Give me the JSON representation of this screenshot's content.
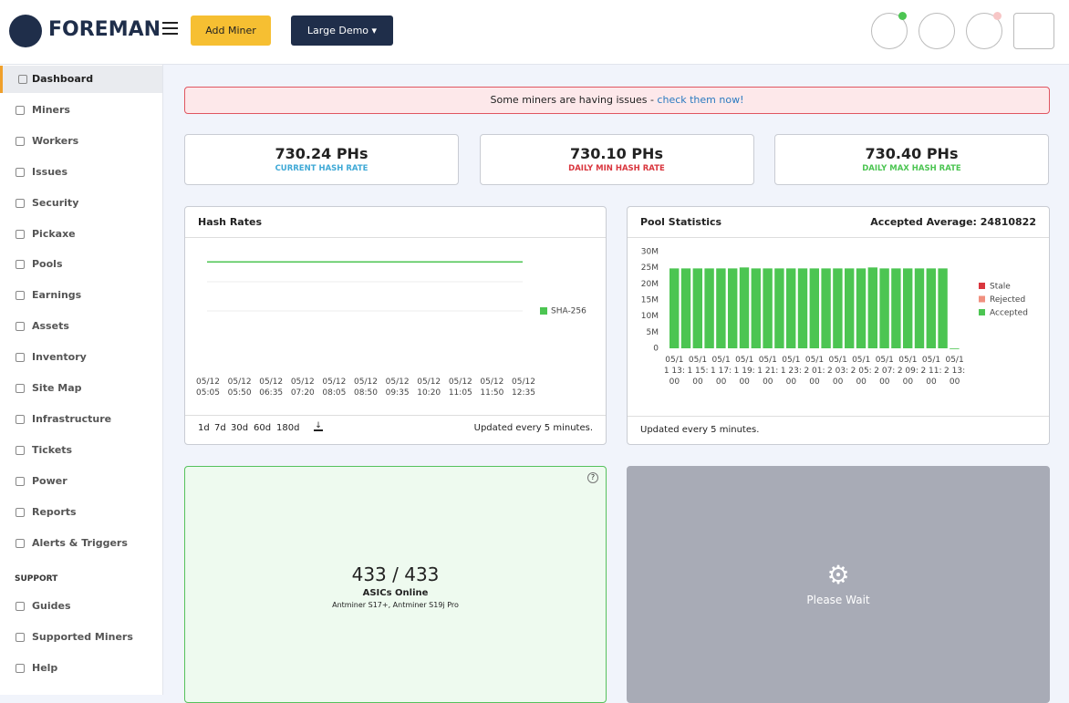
{
  "header": {
    "brand": "FOREMAN",
    "add_button": "Add Miner",
    "site_selector": "Large Demo"
  },
  "sidebar": {
    "items": [
      "Dashboard",
      "Miners",
      "Workers",
      "Issues",
      "Security",
      "Pickaxe",
      "Pools",
      "Earnings",
      "Assets",
      "Inventory",
      "Site Map",
      "Infrastructure",
      "Tickets",
      "Power",
      "Reports",
      "Alerts & Triggers"
    ],
    "section": "SUPPORT",
    "support_items": [
      "Guides",
      "Supported Miners",
      "Help"
    ]
  },
  "alert": {
    "text": "Some miners are having issues - ",
    "link": "check them now!"
  },
  "stats": [
    {
      "value": "730.24 PHs",
      "label": "CURRENT HASH RATE",
      "color": "#3fa9d6"
    },
    {
      "value": "730.10 PHs",
      "label": "DAILY MIN HASH RATE",
      "color": "#d9363e"
    },
    {
      "value": "730.40 PHs",
      "label": "DAILY MAX HASH RATE",
      "color": "#4cc552"
    }
  ],
  "hash_chart": {
    "chart_data": {
      "type": "line",
      "title": "Hash Rates",
      "x": [
        "05/12 05:05",
        "05/12 05:50",
        "05/12 06:35",
        "05/12 07:20",
        "05/12 08:05",
        "05/12 08:50",
        "05/12 09:35",
        "05/12 10:20",
        "05/12 11:05",
        "05/12 11:50",
        "05/12 12:35"
      ],
      "series": [
        {
          "name": "SHA-256",
          "color": "#4cc552",
          "values": [
            730.2,
            730.2,
            730.2,
            730.2,
            730.2,
            730.2,
            730.2,
            730.2,
            730.2,
            730.2,
            730.2
          ]
        }
      ],
      "ylim": [
        0,
        820
      ],
      "legend": "right"
    },
    "ranges": [
      "1d",
      "7d",
      "30d",
      "60d",
      "180d"
    ],
    "footer": "Updated every 5 minutes."
  },
  "pool_chart": {
    "chart_data": {
      "type": "stacked_bar",
      "title": "Pool Statistics",
      "subtitle": "Accepted Average: 24810822",
      "categories": [
        "05/11 13:00",
        null,
        "05/11 15:00",
        null,
        "05/11 17:00",
        null,
        "05/11 19:00",
        null,
        "05/11 21:00",
        null,
        "05/11 23:00",
        null,
        "05/12 01:00",
        null,
        "05/12 03:00",
        null,
        "05/12 05:00",
        null,
        "05/12 07:00",
        null,
        "05/12 09:00",
        null,
        "05/12 11:00",
        null,
        "05/12 13:00"
      ],
      "series": [
        {
          "name": "Accepted",
          "color": "#4cc552",
          "values": [
            24800000,
            24800000,
            24800000,
            24800000,
            24800000,
            24800000,
            25100000,
            24800000,
            24800000,
            24800000,
            24800000,
            24800000,
            24800000,
            24800000,
            24800000,
            24800000,
            24800000,
            25100000,
            24800000,
            24800000,
            24800000,
            24800000,
            24800000,
            24800000,
            0
          ]
        },
        {
          "name": "Rejected",
          "color": "#f0907f",
          "values": [
            0,
            0,
            0,
            0,
            0,
            0,
            0,
            0,
            0,
            0,
            0,
            0,
            0,
            0,
            0,
            0,
            0,
            0,
            0,
            0,
            0,
            0,
            0,
            0,
            0
          ]
        },
        {
          "name": "Stale",
          "color": "#d9363e",
          "values": [
            0,
            0,
            0,
            0,
            0,
            0,
            0,
            0,
            0,
            0,
            0,
            0,
            0,
            0,
            0,
            0,
            0,
            0,
            0,
            0,
            0,
            0,
            0,
            0,
            0
          ]
        }
      ],
      "ylim": [
        0,
        30000000
      ],
      "yticks": [
        0,
        {
          "value": 5000000,
          "label": "5M"
        },
        {
          "value": 10000000,
          "label": "10M"
        },
        {
          "value": 15000000,
          "label": "15M"
        },
        {
          "value": 20000000,
          "label": "20M"
        },
        {
          "value": 25000000,
          "label": "25M"
        },
        {
          "value": 30000000,
          "label": "30M"
        }
      ],
      "legend": "right"
    },
    "footer": "Updated every 5 minutes."
  },
  "asics": {
    "value": "433 / 433",
    "label": "ASICs Online",
    "models": "Antminer S17+, Antminer S19j Pro"
  },
  "loading": {
    "text": "Please Wait"
  }
}
